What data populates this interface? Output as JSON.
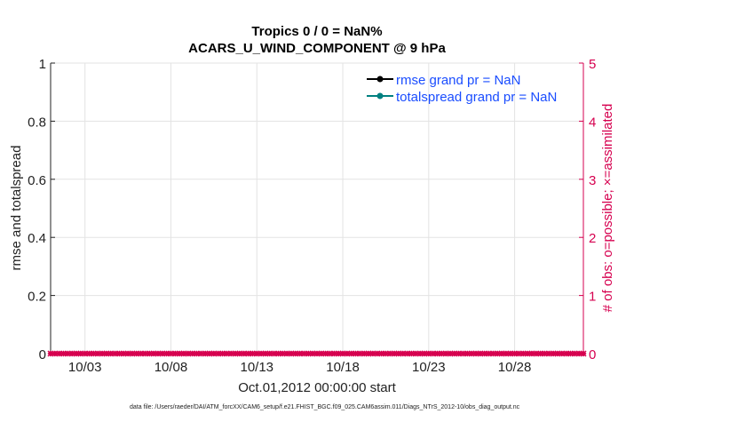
{
  "chart_data": {
    "type": "line",
    "title": "Tropics 0 / 0 = NaN%",
    "subtitle": "ACARS_U_WIND_COMPONENT @ 9 hPa",
    "xlabel": "Oct.01,2012 00:00:00 start",
    "ylabel": "rmse and totalspread",
    "ylabel_right": "# of obs: o=possible; ×=assimilated",
    "x_ticks": [
      "10/03",
      "10/08",
      "10/13",
      "10/18",
      "10/23",
      "10/28"
    ],
    "x_tick_days": [
      2,
      7,
      12,
      17,
      22,
      27
    ],
    "xlim_days": [
      0,
      31
    ],
    "ylim": [
      0,
      1
    ],
    "y_ticks": [
      "0",
      "0.2",
      "0.4",
      "0.6",
      "0.8",
      "1"
    ],
    "ylim_right": [
      0,
      5
    ],
    "y_ticks_right": [
      "0",
      "1",
      "2",
      "3",
      "4",
      "5"
    ],
    "grid": true,
    "legend_placement": "top-right",
    "series": [
      {
        "name": "rmse grand pr = NaN",
        "color": "#000000",
        "values": []
      },
      {
        "name": "totalspread grand pr = NaN",
        "color": "#008080",
        "values": []
      }
    ],
    "obs_count": {
      "color": "#d6004f",
      "interval_hours": 6,
      "possible": 0,
      "assimilated": 0
    },
    "footer": "data file: /Users/raeder/DAI/ATM_forcXX/CAM6_setup/f.e21.FHIST_BGC.f09_025.CAM6assim.011/Diags_NTrS_2012-10/obs_diag_output.nc"
  }
}
